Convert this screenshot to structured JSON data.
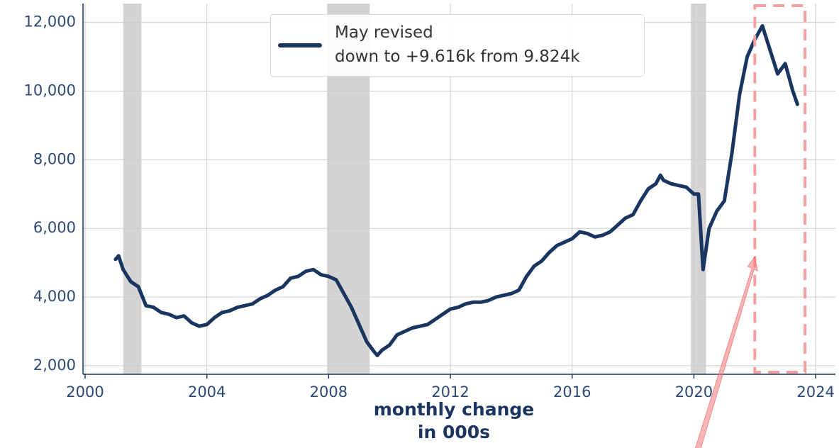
{
  "chart_data": {
    "type": "line",
    "x_label": "monthly change\nin 000s",
    "xlim": [
      1999.93,
      2024.65
    ],
    "xticks": [
      2000,
      2004,
      2008,
      2012,
      2016,
      2020,
      2024
    ],
    "ylim": [
      1750,
      12550
    ],
    "yticks": [
      {
        "value": 2000,
        "label": "2,000"
      },
      {
        "value": 4000,
        "label": "4,000"
      },
      {
        "value": 6000,
        "label": "6,000"
      },
      {
        "value": 8000,
        "label": "8,000"
      },
      {
        "value": 10000,
        "label": "10,000"
      },
      {
        "value": 12000,
        "label": "12,000"
      }
    ],
    "grid": true,
    "legend": "upper center",
    "shaded_regions": [
      [
        2001.25,
        2001.85
      ],
      [
        2007.95,
        2009.35
      ],
      [
        2019.9,
        2020.4
      ]
    ],
    "highlight_region": [
      2022.0,
      2023.65
    ],
    "x": [
      2001.0,
      2001.1,
      2001.25,
      2001.5,
      2001.75,
      2002.0,
      2002.25,
      2002.5,
      2002.75,
      2003.0,
      2003.25,
      2003.5,
      2003.75,
      2004.0,
      2004.25,
      2004.5,
      2004.75,
      2005.0,
      2005.25,
      2005.5,
      2005.75,
      2006.0,
      2006.25,
      2006.5,
      2006.75,
      2007.0,
      2007.25,
      2007.5,
      2007.75,
      2008.0,
      2008.25,
      2008.5,
      2008.75,
      2009.0,
      2009.25,
      2009.5,
      2009.6,
      2009.75,
      2010.0,
      2010.25,
      2010.5,
      2010.75,
      2011.0,
      2011.25,
      2011.5,
      2011.75,
      2012.0,
      2012.25,
      2012.5,
      2012.75,
      2013.0,
      2013.25,
      2013.5,
      2013.75,
      2014.0,
      2014.25,
      2014.5,
      2014.75,
      2015.0,
      2015.25,
      2015.5,
      2015.75,
      2016.0,
      2016.25,
      2016.5,
      2016.75,
      2017.0,
      2017.25,
      2017.5,
      2017.75,
      2018.0,
      2018.25,
      2018.5,
      2018.75,
      2018.9,
      2019.0,
      2019.25,
      2019.5,
      2019.75,
      2020.0,
      2020.15,
      2020.3,
      2020.5,
      2020.75,
      2021.0,
      2021.25,
      2021.5,
      2021.75,
      2022.0,
      2022.25,
      2022.5,
      2022.75,
      2023.0,
      2023.25,
      2023.4
    ],
    "series": [
      {
        "name": "May revised\ndown to +9.616k from 9.824k",
        "color": "#1a3560",
        "values": [
          5100,
          5200,
          4800,
          4450,
          4300,
          3750,
          3700,
          3550,
          3500,
          3400,
          3450,
          3250,
          3150,
          3200,
          3400,
          3550,
          3600,
          3700,
          3750,
          3800,
          3950,
          4050,
          4200,
          4300,
          4550,
          4600,
          4750,
          4800,
          4650,
          4600,
          4500,
          4100,
          3700,
          3200,
          2700,
          2400,
          2300,
          2450,
          2600,
          2900,
          3000,
          3100,
          3150,
          3200,
          3350,
          3500,
          3650,
          3700,
          3800,
          3850,
          3850,
          3900,
          4000,
          4050,
          4100,
          4200,
          4600,
          4900,
          5050,
          5300,
          5500,
          5600,
          5700,
          5900,
          5850,
          5750,
          5800,
          5900,
          6100,
          6300,
          6400,
          6800,
          7150,
          7300,
          7550,
          7400,
          7300,
          7250,
          7200,
          7000,
          7000,
          4800,
          6000,
          6500,
          6800,
          8200,
          9900,
          11000,
          11500,
          11900,
          11200,
          10500,
          10800,
          10000,
          9616
        ]
      }
    ]
  }
}
